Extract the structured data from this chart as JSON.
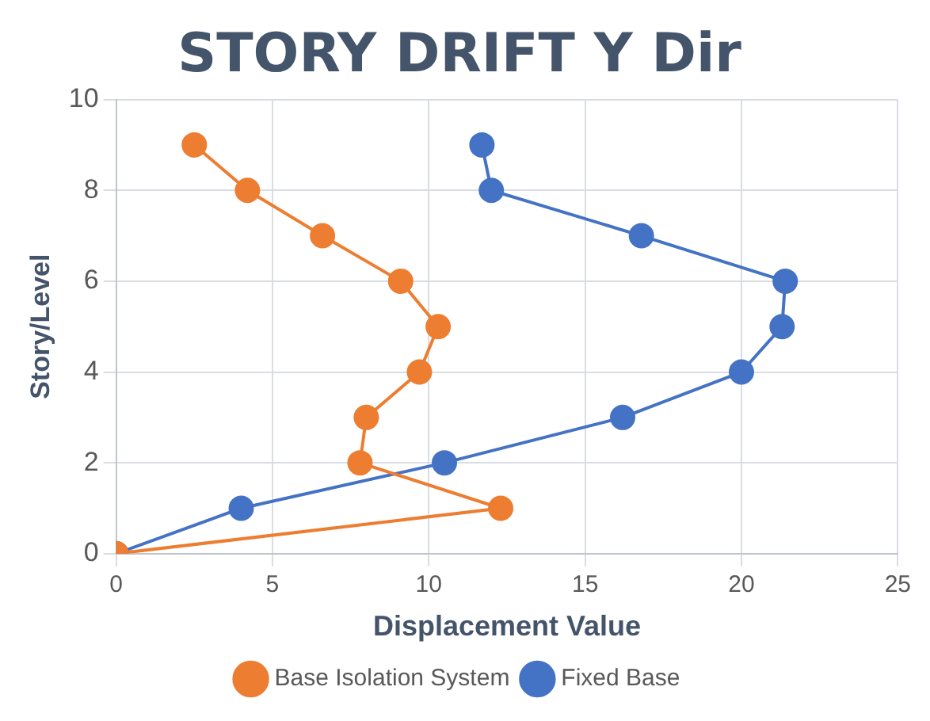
{
  "chart_data": {
    "type": "line",
    "title": "STORY DRIFT Y Dir",
    "xlabel": "Displacement Value",
    "ylabel": "Story/Level",
    "xlim": [
      0,
      25
    ],
    "xticks": [
      0,
      5,
      10,
      15,
      20,
      25
    ],
    "ylim": [
      0,
      10
    ],
    "yticks": [
      0,
      2,
      4,
      6,
      8,
      10
    ],
    "grid": true,
    "legend": "bottom",
    "marker": "circle",
    "line_style": "solid",
    "series": [
      {
        "name": "Base Isolation System",
        "color": "#ed7d31",
        "x": [
          0,
          12.3,
          7.8,
          8.0,
          9.7,
          10.3,
          9.1,
          6.6,
          4.2,
          2.5
        ],
        "values": [
          0,
          1,
          2,
          3,
          4,
          5,
          6,
          7,
          8,
          9
        ]
      },
      {
        "name": "Fixed Base",
        "color": "#4472c4",
        "x": [
          0,
          4.0,
          10.5,
          16.2,
          20.0,
          21.3,
          21.4,
          16.8,
          12.0,
          11.7
        ],
        "values": [
          0,
          1,
          2,
          3,
          4,
          5,
          6,
          7,
          8,
          9
        ]
      }
    ]
  }
}
